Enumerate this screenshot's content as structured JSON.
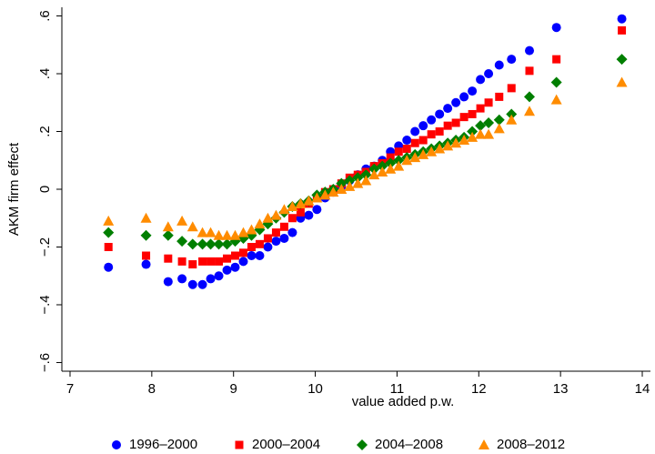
{
  "chart_data": {
    "type": "scatter",
    "xlabel": "value added p.w.",
    "ylabel": "AKM firm effect",
    "xlim": [
      6.9,
      14.1
    ],
    "xticks": [
      7,
      8,
      9,
      10,
      11,
      12,
      13,
      14
    ],
    "ylim": [
      -0.63,
      0.63
    ],
    "yticks": [
      {
        "value": -0.6,
        "label": "−.6"
      },
      {
        "value": -0.4,
        "label": "−.4"
      },
      {
        "value": -0.2,
        "label": "−.2"
      },
      0,
      {
        "value": 0.2,
        "label": ".2"
      },
      {
        "value": 0.4,
        "label": ".4"
      },
      {
        "value": 0.6,
        "label": ".6"
      }
    ],
    "legend": "bottom",
    "x": [
      7.47,
      7.93,
      8.2,
      8.37,
      8.5,
      8.62,
      8.72,
      8.82,
      8.92,
      9.02,
      9.12,
      9.22,
      9.32,
      9.42,
      9.52,
      9.62,
      9.72,
      9.82,
      9.92,
      10.02,
      10.12,
      10.22,
      10.32,
      10.42,
      10.52,
      10.62,
      10.72,
      10.82,
      10.92,
      11.02,
      11.12,
      11.22,
      11.32,
      11.42,
      11.52,
      11.62,
      11.72,
      11.82,
      11.92,
      12.02,
      12.12,
      12.25,
      12.4,
      12.62,
      12.95,
      13.75
    ],
    "series": [
      {
        "name": "1996–2000",
        "color": "#0000ff",
        "marker": "circle",
        "values": [
          -0.27,
          -0.26,
          -0.32,
          -0.31,
          -0.33,
          -0.33,
          -0.31,
          -0.3,
          -0.28,
          -0.27,
          -0.25,
          -0.23,
          -0.23,
          -0.2,
          -0.18,
          -0.17,
          -0.15,
          -0.1,
          -0.09,
          -0.07,
          -0.03,
          -0.01,
          0.01,
          0.03,
          0.05,
          0.07,
          0.08,
          0.1,
          0.13,
          0.15,
          0.17,
          0.2,
          0.22,
          0.24,
          0.26,
          0.28,
          0.3,
          0.32,
          0.34,
          0.38,
          0.4,
          0.43,
          0.45,
          0.48,
          0.56,
          0.59
        ]
      },
      {
        "name": "2000–2004",
        "color": "#ff0000",
        "marker": "square",
        "values": [
          -0.2,
          -0.23,
          -0.24,
          -0.25,
          -0.26,
          -0.25,
          -0.25,
          -0.25,
          -0.24,
          -0.23,
          -0.22,
          -0.2,
          -0.19,
          -0.17,
          -0.15,
          -0.13,
          -0.1,
          -0.08,
          -0.05,
          -0.03,
          -0.01,
          0.0,
          0.02,
          0.04,
          0.05,
          0.06,
          0.08,
          0.09,
          0.11,
          0.13,
          0.14,
          0.16,
          0.17,
          0.19,
          0.2,
          0.22,
          0.23,
          0.25,
          0.26,
          0.28,
          0.3,
          0.32,
          0.35,
          0.41,
          0.45,
          0.55
        ]
      },
      {
        "name": "2004–2008",
        "color": "#007f00",
        "marker": "diamond",
        "values": [
          -0.15,
          -0.16,
          -0.16,
          -0.18,
          -0.19,
          -0.19,
          -0.19,
          -0.19,
          -0.19,
          -0.18,
          -0.17,
          -0.16,
          -0.14,
          -0.12,
          -0.1,
          -0.08,
          -0.06,
          -0.05,
          -0.04,
          -0.02,
          -0.01,
          0.0,
          0.02,
          0.03,
          0.04,
          0.05,
          0.07,
          0.08,
          0.09,
          0.1,
          0.11,
          0.12,
          0.13,
          0.14,
          0.15,
          0.16,
          0.17,
          0.18,
          0.2,
          0.22,
          0.23,
          0.24,
          0.26,
          0.32,
          0.37,
          0.45
        ]
      },
      {
        "name": "2008–2012",
        "color": "#ff8c00",
        "marker": "triangle",
        "values": [
          -0.11,
          -0.1,
          -0.13,
          -0.11,
          -0.13,
          -0.15,
          -0.15,
          -0.16,
          -0.16,
          -0.16,
          -0.15,
          -0.14,
          -0.12,
          -0.1,
          -0.09,
          -0.07,
          -0.06,
          -0.05,
          -0.04,
          -0.03,
          -0.02,
          -0.01,
          0.0,
          0.01,
          0.02,
          0.03,
          0.05,
          0.06,
          0.07,
          0.08,
          0.1,
          0.11,
          0.12,
          0.13,
          0.14,
          0.15,
          0.16,
          0.17,
          0.18,
          0.19,
          0.19,
          0.21,
          0.24,
          0.27,
          0.31,
          0.37
        ]
      }
    ]
  }
}
